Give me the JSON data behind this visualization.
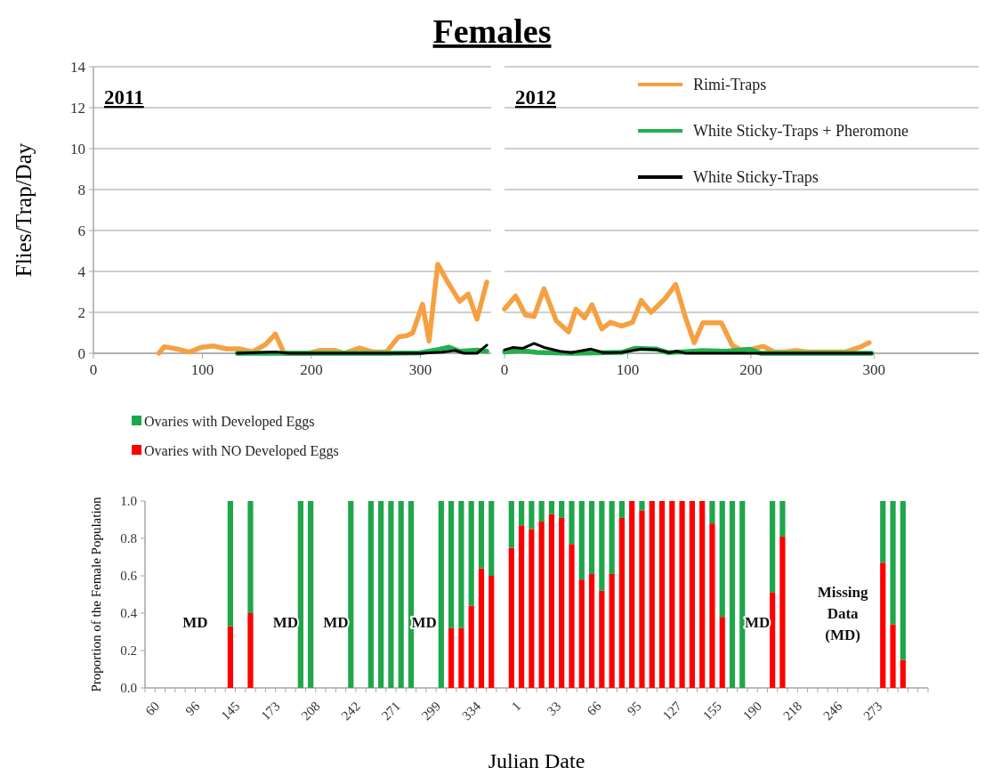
{
  "chart_data": [
    {
      "type": "line",
      "title": "Females",
      "subtitle": "2011",
      "ylabel": "Flies/Trap/Day",
      "xlim": [
        0,
        365
      ],
      "ylim": [
        0,
        14
      ],
      "xticks": [
        0,
        100,
        200,
        300
      ],
      "yticks": [
        0,
        2,
        4,
        6,
        8,
        10,
        12,
        14
      ],
      "grid": "y",
      "line_style": "solid",
      "series": [
        {
          "color": "#f5a041",
          "x": [
            60,
            65,
            76,
            88,
            99,
            110,
            122,
            134,
            146,
            158,
            167,
            175,
            186,
            197,
            208,
            222,
            230,
            244,
            256,
            269,
            280,
            288,
            293,
            302,
            308,
            316,
            326,
            336,
            344,
            352,
            361
          ],
          "values": [
            0,
            0.32,
            0.22,
            0.06,
            0.29,
            0.36,
            0.22,
            0.22,
            0.07,
            0.43,
            0.94,
            0,
            0,
            0,
            0.14,
            0.14,
            0,
            0.26,
            0.07,
            0.07,
            0.8,
            0.87,
            1,
            2.4,
            0.6,
            4.35,
            3.4,
            2.54,
            2.9,
            1.67,
            3.48
          ]
        },
        {
          "color": "#22b04e",
          "x": [
            132,
            270,
            300,
            318,
            326,
            336,
            352,
            361
          ],
          "values": [
            0,
            0,
            0.02,
            0.2,
            0.3,
            0.1,
            0.15,
            0.1
          ]
        },
        {
          "color": "#000000",
          "x": [
            132,
            168,
            180,
            300,
            320,
            332,
            340,
            352,
            361
          ],
          "values": [
            0,
            0.06,
            0,
            0,
            0.05,
            0.14,
            0,
            0,
            0.4
          ]
        }
      ]
    },
    {
      "type": "line",
      "subtitle": "2012",
      "xlim": [
        0,
        385
      ],
      "ylim": [
        0,
        14
      ],
      "xticks": [
        0,
        100,
        200,
        300
      ],
      "yticks": [
        0,
        2,
        4,
        6,
        8,
        10,
        12,
        14
      ],
      "grid": "y",
      "legend": "top right",
      "tick_labels": "x",
      "line_style": "solid",
      "series": [
        {
          "name": "Rimi-Traps",
          "color": "#f5a041",
          "x": [
            0,
            9,
            17,
            24,
            32,
            42,
            52,
            58,
            65,
            71,
            79,
            86,
            95,
            104,
            111,
            119,
            130,
            139,
            147,
            154,
            161,
            176,
            185,
            192,
            201,
            210,
            219,
            228,
            237,
            247,
            277,
            289,
            296
          ],
          "values": [
            2.16,
            2.8,
            1.87,
            1.8,
            3.15,
            1.59,
            1.05,
            2.16,
            1.73,
            2.37,
            1.19,
            1.52,
            1.33,
            1.52,
            2.58,
            2,
            2.65,
            3.36,
            1.73,
            0.52,
            1.49,
            1.49,
            0.38,
            0.17,
            0.2,
            0.34,
            0.07,
            0.07,
            0.13,
            0.06,
            0.07,
            0.31,
            0.52
          ]
        },
        {
          "name": "White Sticky-Traps + Pheromone",
          "color": "#22b04e",
          "x": [
            0,
            14,
            26,
            54,
            95,
            106,
            123,
            133,
            161,
            180,
            199,
            208,
            298
          ],
          "values": [
            0.07,
            0.13,
            0.04,
            0,
            0.04,
            0.24,
            0.21,
            0.03,
            0.13,
            0.1,
            0.2,
            0,
            0
          ]
        },
        {
          "name": "White Sticky-Traps",
          "color": "#000000",
          "x": [
            0,
            7,
            15,
            24,
            33,
            45,
            54,
            70,
            80,
            95,
            111,
            124,
            134,
            140,
            147,
            298
          ],
          "values": [
            0.17,
            0.28,
            0.24,
            0.48,
            0.27,
            0.1,
            0.03,
            0.21,
            0.03,
            0.04,
            0.21,
            0.17,
            0.03,
            0.1,
            0,
            0
          ]
        }
      ]
    },
    {
      "type": "bar",
      "stacked": true,
      "xlabel": "Julian Date",
      "ylabel": "Proportion of the Female Population",
      "ylim": [
        0,
        1
      ],
      "yticks": [
        {
          "value": 0,
          "label": "0.0"
        },
        {
          "value": 0.2,
          "label": "0.2"
        },
        {
          "value": 0.4,
          "label": "0.4"
        },
        {
          "value": 0.6,
          "label": "0.6"
        },
        {
          "value": 0.8,
          "label": "0.8"
        },
        {
          "value": 1,
          "label": "1.0"
        }
      ],
      "legend": "top left",
      "grid": false,
      "annotations": [
        "MD",
        "MD",
        "MD",
        "MD",
        "MD",
        "Missing Data (MD)"
      ],
      "categories": [
        "60",
        null,
        null,
        null,
        "96",
        null,
        null,
        null,
        "145",
        null,
        null,
        null,
        "173",
        null,
        null,
        null,
        "208",
        null,
        null,
        null,
        "242",
        null,
        null,
        null,
        "271",
        null,
        null,
        null,
        "299",
        null,
        null,
        null,
        "334",
        null,
        null,
        null,
        "1",
        null,
        null,
        null,
        "33",
        null,
        null,
        null,
        "66",
        null,
        null,
        null,
        "95",
        null,
        null,
        null,
        "127",
        null,
        null,
        null,
        "155",
        null,
        null,
        null,
        "190",
        null,
        null,
        null,
        "218",
        null,
        null,
        null,
        "246",
        null,
        null,
        null,
        "273",
        null,
        null,
        null,
        null,
        null
      ],
      "series": [
        {
          "name": "Ovaries with NO Developed Eggs",
          "color": "#ff0000",
          "values": [
            null,
            null,
            null,
            null,
            null,
            null,
            null,
            null,
            0.33,
            null,
            0.4,
            null,
            null,
            null,
            null,
            0,
            0,
            null,
            null,
            null,
            0,
            null,
            0,
            0,
            0,
            0,
            0,
            null,
            null,
            0,
            0.32,
            0.32,
            0.44,
            0.64,
            0.6,
            null,
            0.75,
            0.87,
            0.85,
            0.89,
            0.93,
            0.91,
            0.77,
            0.58,
            0.61,
            0.52,
            0.61,
            0.91,
            1,
            0.95,
            1,
            1,
            1,
            1,
            1,
            1,
            0.88,
            0.38,
            0,
            0,
            null,
            null,
            0.51,
            0.81,
            null,
            null,
            null,
            null,
            null,
            null,
            null,
            null,
            null,
            0.67,
            0.34,
            0.15,
            null,
            null
          ]
        },
        {
          "name": "Ovaries with Developed Eggs",
          "color": "#1fa64a",
          "values": [
            null,
            null,
            null,
            null,
            null,
            null,
            null,
            null,
            0.67,
            null,
            0.6,
            null,
            null,
            null,
            null,
            1,
            1,
            null,
            null,
            null,
            1,
            null,
            1,
            1,
            1,
            1,
            1,
            null,
            null,
            1,
            0.68,
            0.68,
            0.56,
            0.36,
            0.4,
            null,
            0.25,
            0.13,
            0.15,
            0.11,
            0.07,
            0.09,
            0.23,
            0.42,
            0.39,
            0.48,
            0.39,
            0.09,
            0,
            0.05,
            0,
            0,
            0,
            0,
            0,
            0,
            0.12,
            0.62,
            1,
            1,
            null,
            null,
            0.49,
            0.19,
            null,
            null,
            null,
            null,
            null,
            null,
            null,
            null,
            null,
            0.33,
            0.66,
            0.85,
            null,
            null
          ]
        }
      ]
    }
  ]
}
